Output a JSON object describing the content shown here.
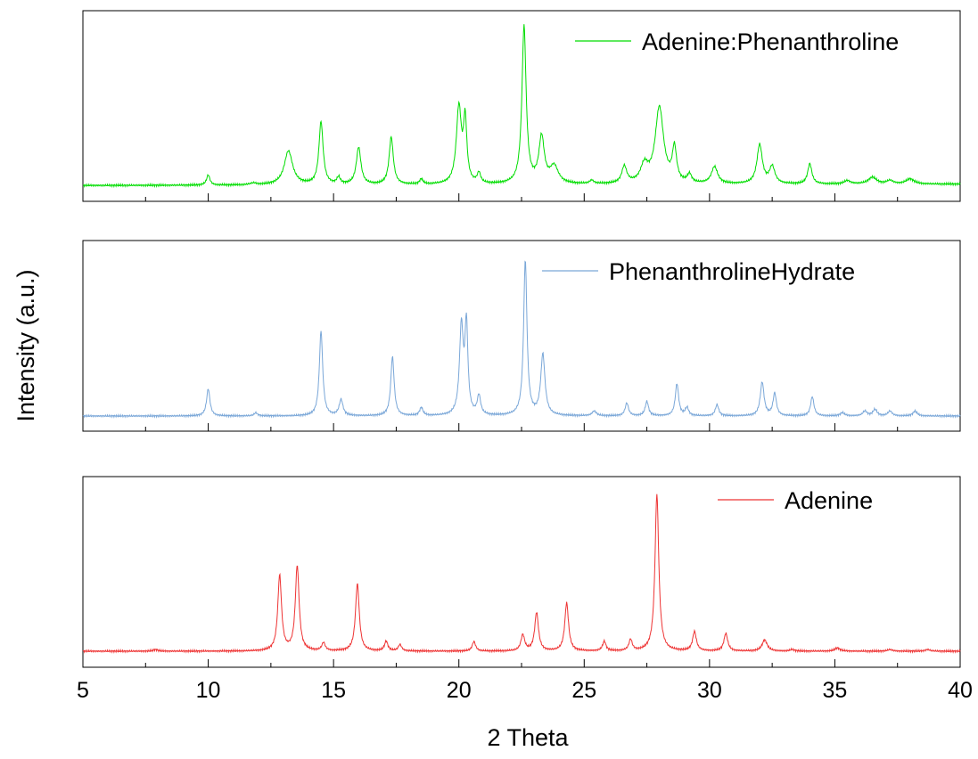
{
  "chart_data": {
    "type": "line",
    "title": "",
    "xlabel": "2 Theta",
    "ylabel": "Intensity (a.u.)",
    "xlim": [
      5,
      40
    ],
    "x_ticks": [
      5,
      10,
      15,
      20,
      25,
      30,
      35,
      40
    ],
    "grid": false,
    "legend_position": "top-right",
    "panels": [
      {
        "name": "Adenine:Phenanthroline",
        "color": "#00dd00",
        "baseline": 0.02,
        "peaks": [
          [
            10.0,
            0.06,
            0.08
          ],
          [
            11.8,
            0.01,
            0.15
          ],
          [
            13.2,
            0.2,
            0.2
          ],
          [
            14.5,
            0.37,
            0.1
          ],
          [
            15.2,
            0.04,
            0.08
          ],
          [
            16.0,
            0.22,
            0.11
          ],
          [
            17.3,
            0.28,
            0.1
          ],
          [
            18.5,
            0.03,
            0.08
          ],
          [
            20.0,
            0.45,
            0.12
          ],
          [
            20.25,
            0.36,
            0.08
          ],
          [
            20.8,
            0.06,
            0.08
          ],
          [
            22.6,
            0.93,
            0.1
          ],
          [
            23.3,
            0.27,
            0.13
          ],
          [
            23.8,
            0.1,
            0.2
          ],
          [
            25.3,
            0.02,
            0.1
          ],
          [
            26.6,
            0.1,
            0.12
          ],
          [
            27.4,
            0.1,
            0.18
          ],
          [
            28.0,
            0.45,
            0.2
          ],
          [
            28.6,
            0.2,
            0.1
          ],
          [
            29.2,
            0.05,
            0.1
          ],
          [
            30.2,
            0.1,
            0.15
          ],
          [
            32.0,
            0.23,
            0.13
          ],
          [
            32.5,
            0.1,
            0.13
          ],
          [
            34.0,
            0.12,
            0.1
          ],
          [
            35.5,
            0.02,
            0.15
          ],
          [
            36.5,
            0.04,
            0.2
          ],
          [
            37.2,
            0.02,
            0.15
          ],
          [
            38.0,
            0.03,
            0.2
          ]
        ]
      },
      {
        "name": "PhenanthrolineHydrate",
        "color": "#7aa7d8",
        "baseline": 0.0,
        "peaks": [
          [
            10.0,
            0.17,
            0.08
          ],
          [
            11.9,
            0.02,
            0.08
          ],
          [
            14.5,
            0.53,
            0.08
          ],
          [
            15.3,
            0.1,
            0.09
          ],
          [
            17.35,
            0.37,
            0.08
          ],
          [
            18.5,
            0.05,
            0.08
          ],
          [
            20.1,
            0.55,
            0.09
          ],
          [
            20.3,
            0.55,
            0.07
          ],
          [
            20.8,
            0.12,
            0.08
          ],
          [
            22.65,
            0.97,
            0.08
          ],
          [
            23.35,
            0.38,
            0.1
          ],
          [
            25.4,
            0.03,
            0.1
          ],
          [
            26.7,
            0.08,
            0.08
          ],
          [
            27.5,
            0.09,
            0.08
          ],
          [
            28.7,
            0.2,
            0.08
          ],
          [
            29.1,
            0.05,
            0.08
          ],
          [
            30.3,
            0.07,
            0.08
          ],
          [
            32.1,
            0.21,
            0.09
          ],
          [
            32.6,
            0.14,
            0.08
          ],
          [
            34.1,
            0.12,
            0.08
          ],
          [
            35.3,
            0.02,
            0.1
          ],
          [
            36.2,
            0.03,
            0.1
          ],
          [
            36.6,
            0.04,
            0.1
          ],
          [
            37.2,
            0.03,
            0.1
          ],
          [
            38.2,
            0.03,
            0.1
          ]
        ]
      },
      {
        "name": "Adenine",
        "color": "#ee3333",
        "baseline": 0.0,
        "peaks": [
          [
            7.9,
            0.01,
            0.1
          ],
          [
            12.85,
            0.47,
            0.09
          ],
          [
            13.55,
            0.53,
            0.09
          ],
          [
            14.6,
            0.05,
            0.08
          ],
          [
            15.95,
            0.42,
            0.09
          ],
          [
            17.1,
            0.06,
            0.08
          ],
          [
            17.65,
            0.04,
            0.08
          ],
          [
            20.6,
            0.06,
            0.08
          ],
          [
            22.55,
            0.1,
            0.09
          ],
          [
            23.1,
            0.24,
            0.09
          ],
          [
            24.3,
            0.3,
            0.09
          ],
          [
            25.8,
            0.06,
            0.08
          ],
          [
            26.85,
            0.07,
            0.08
          ],
          [
            27.9,
            0.98,
            0.09
          ],
          [
            29.4,
            0.12,
            0.09
          ],
          [
            30.65,
            0.11,
            0.09
          ],
          [
            32.2,
            0.07,
            0.12
          ],
          [
            33.3,
            0.01,
            0.1
          ],
          [
            35.1,
            0.02,
            0.12
          ],
          [
            37.2,
            0.01,
            0.12
          ],
          [
            38.7,
            0.01,
            0.12
          ]
        ]
      }
    ]
  }
}
